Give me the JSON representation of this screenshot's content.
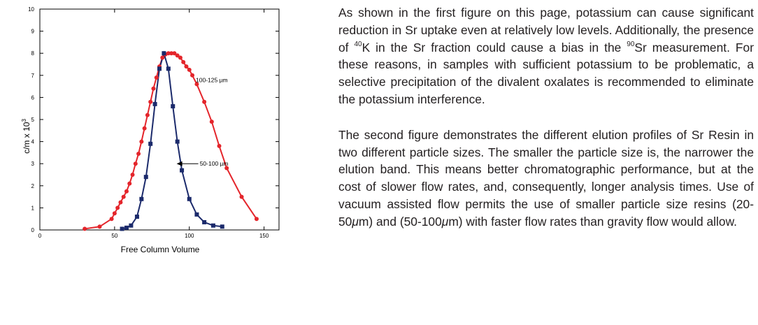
{
  "paragraph1": {
    "part1": "As shown in the first figure on this page, potassium can cause significant reduction in Sr uptake even at relatively low levels. Additionally, the presence of ",
    "sup1": "40",
    "part2": "K in the Sr fraction could cause a bias in the ",
    "sup2": "90",
    "part3": "Sr measurement. For these reasons, in samples with sufficient potassium to be problematic, a selective precipitation of the divalent oxalates is recommended to eliminate the potassium interference."
  },
  "paragraph2": {
    "part1": "The second figure demonstrates the different elution profiles of Sr Resin in two different particle sizes. The smaller the particle size is, the narrower the elution band. This means better chromatographic performance, but at the cost of slower flow rates, and, consequently, longer analysis times. Use of vacuum assisted flow permits the use of smaller particle size resins (20-50",
    "mu1": "μ",
    "part2": "m) and (50-100",
    "mu2": "μ",
    "part3": "m) with faster flow rates than gravity flow would allow."
  },
  "chart_data": {
    "type": "line",
    "title": "",
    "xlabel": "Free Column Volume",
    "ylabel_base": "c/m x 10",
    "ylabel_exp": "3",
    "xlim": [
      0,
      160
    ],
    "ylim": [
      0,
      10
    ],
    "xticks": [
      0,
      50,
      100,
      150
    ],
    "yticks": [
      0,
      1,
      2,
      3,
      4,
      5,
      6,
      7,
      8,
      9,
      10
    ],
    "series": [
      {
        "name": "100-125 µm",
        "color": "#e4252b",
        "marker": "circle",
        "x": [
          30,
          40,
          48,
          50,
          52,
          54,
          56,
          58,
          60,
          62,
          64,
          66,
          68,
          70,
          72,
          74,
          76,
          78,
          80,
          82,
          84,
          86,
          88,
          90,
          92,
          94,
          96,
          98,
          100,
          102,
          105,
          110,
          115,
          120,
          125,
          135,
          145
        ],
        "y": [
          0.05,
          0.15,
          0.5,
          0.75,
          1.0,
          1.25,
          1.5,
          1.75,
          2.1,
          2.5,
          3.0,
          3.45,
          4.0,
          4.6,
          5.2,
          5.8,
          6.4,
          6.9,
          7.4,
          7.8,
          7.95,
          8.0,
          8.0,
          8.0,
          7.9,
          7.8,
          7.6,
          7.4,
          7.25,
          7.0,
          6.6,
          5.8,
          4.9,
          3.8,
          2.8,
          1.5,
          0.5
        ]
      },
      {
        "name": "50-100 µm",
        "color": "#1b2a6b",
        "marker": "square",
        "x": [
          55,
          58,
          61,
          65,
          68,
          71,
          74,
          77,
          80,
          83,
          86,
          89,
          92,
          95,
          100,
          105,
          110,
          116,
          122
        ],
        "y": [
          0.05,
          0.1,
          0.2,
          0.6,
          1.4,
          2.4,
          3.9,
          5.7,
          7.3,
          8.0,
          7.3,
          5.6,
          4.0,
          2.7,
          1.4,
          0.7,
          0.35,
          0.2,
          0.15
        ]
      }
    ],
    "annotations": [
      {
        "text": "100-125 µm",
        "series": "100-125 µm"
      },
      {
        "text": "50-100 µm",
        "series": "50-100 µm",
        "arrow": true
      }
    ]
  }
}
